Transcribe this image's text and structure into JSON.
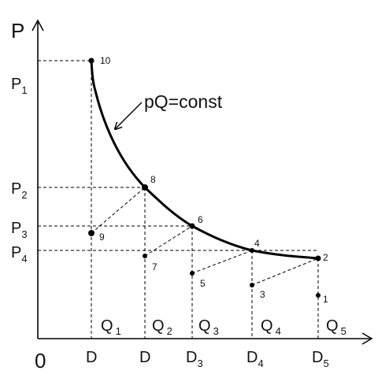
{
  "axes": {
    "y_label": "P",
    "origin_label": "0"
  },
  "price_labels": [
    {
      "main": "P",
      "sub": "1"
    },
    {
      "main": "P",
      "sub": "2"
    },
    {
      "main": "P",
      "sub": "3"
    },
    {
      "main": "P",
      "sub": "4"
    }
  ],
  "d_labels": [
    {
      "main": "D",
      "sub": ""
    },
    {
      "main": "D",
      "sub": ""
    },
    {
      "main": "D",
      "sub": "3"
    },
    {
      "main": "D",
      "sub": "4"
    },
    {
      "main": "D",
      "sub": "5"
    }
  ],
  "q_labels": [
    {
      "main": "Q",
      "sub": "1"
    },
    {
      "main": "Q",
      "sub": "2"
    },
    {
      "main": "Q",
      "sub": "3"
    },
    {
      "main": "Q",
      "sub": "4"
    },
    {
      "main": "Q",
      "sub": "5"
    }
  ],
  "curve_label": "pQ=const",
  "point_labels": [
    "1",
    "2",
    "3",
    "4",
    "5",
    "6",
    "7",
    "8",
    "9",
    "10"
  ]
}
